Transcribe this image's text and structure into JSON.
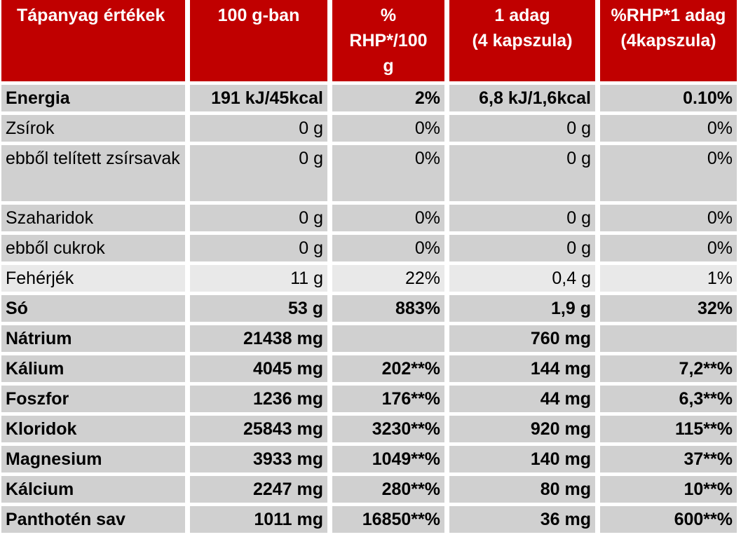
{
  "header": [
    "Tápanyag értékek",
    "100 g-ban",
    "% RHP*/100 g",
    "1 adag (4 kapszula)",
    "%RHP*1 adag (4kapszula)"
  ],
  "header_lines": {
    "col2": [
      "%",
      "RHP*/100",
      "g"
    ],
    "col3": [
      "1 adag",
      "(4 kapszula)"
    ],
    "col4": [
      "%RHP*1 adag",
      "(4kapszula)"
    ]
  },
  "rows": [
    {
      "name": "Energia",
      "per100": "191 kJ/45kcal",
      "rhp100": "2%",
      "serving": "6,8 kJ/1,6kcal",
      "rhpServing": "0.10%"
    },
    {
      "name": "Zsírok",
      "per100": "0 g",
      "rhp100": "0%",
      "serving": "0 g",
      "rhpServing": "0%"
    },
    {
      "name": "ebből telített zsírsavak",
      "per100": "0 g",
      "rhp100": "0%",
      "serving": "0 g",
      "rhpServing": "0%"
    },
    {
      "name": "Szaharidok",
      "per100": "0 g",
      "rhp100": "0%",
      "serving": "0 g",
      "rhpServing": "0%"
    },
    {
      "name": "ebből cukrok",
      "per100": "0 g",
      "rhp100": "0%",
      "serving": "0 g",
      "rhpServing": "0%"
    },
    {
      "name": "Fehérjék",
      "per100": "11 g",
      "rhp100": "22%",
      "serving": "0,4 g",
      "rhpServing": "1%"
    },
    {
      "name": "Só",
      "per100": "53 g",
      "rhp100": "883%",
      "serving": "1,9 g",
      "rhpServing": "32%"
    },
    {
      "name": "Nátrium",
      "per100": "21438 mg",
      "rhp100": "",
      "serving": "760 mg",
      "rhpServing": ""
    },
    {
      "name": "Kálium",
      "per100": "4045 mg",
      "rhp100": "202**%",
      "serving": "144 mg",
      "rhpServing": "7,2**%"
    },
    {
      "name": "Foszfor",
      "per100": "1236 mg",
      "rhp100": "176**%",
      "serving": "44 mg",
      "rhpServing": "6,3**%"
    },
    {
      "name": "Kloridok",
      "per100": "25843 mg",
      "rhp100": "3230**%",
      "serving": "920 mg",
      "rhpServing": "115**%"
    },
    {
      "name": "Magnesium",
      "per100": "3933 mg",
      "rhp100": "1049**%",
      "serving": "140 mg",
      "rhpServing": "37**%"
    },
    {
      "name": "Kálcium",
      "per100": "2247 mg",
      "rhp100": "280**%",
      "serving": "80 mg",
      "rhpServing": "10**%"
    },
    {
      "name": "Panthotén sav",
      "per100": "1011 mg",
      "rhp100": "16850**%",
      "serving": "36 mg",
      "rhpServing": "600**%"
    }
  ]
}
